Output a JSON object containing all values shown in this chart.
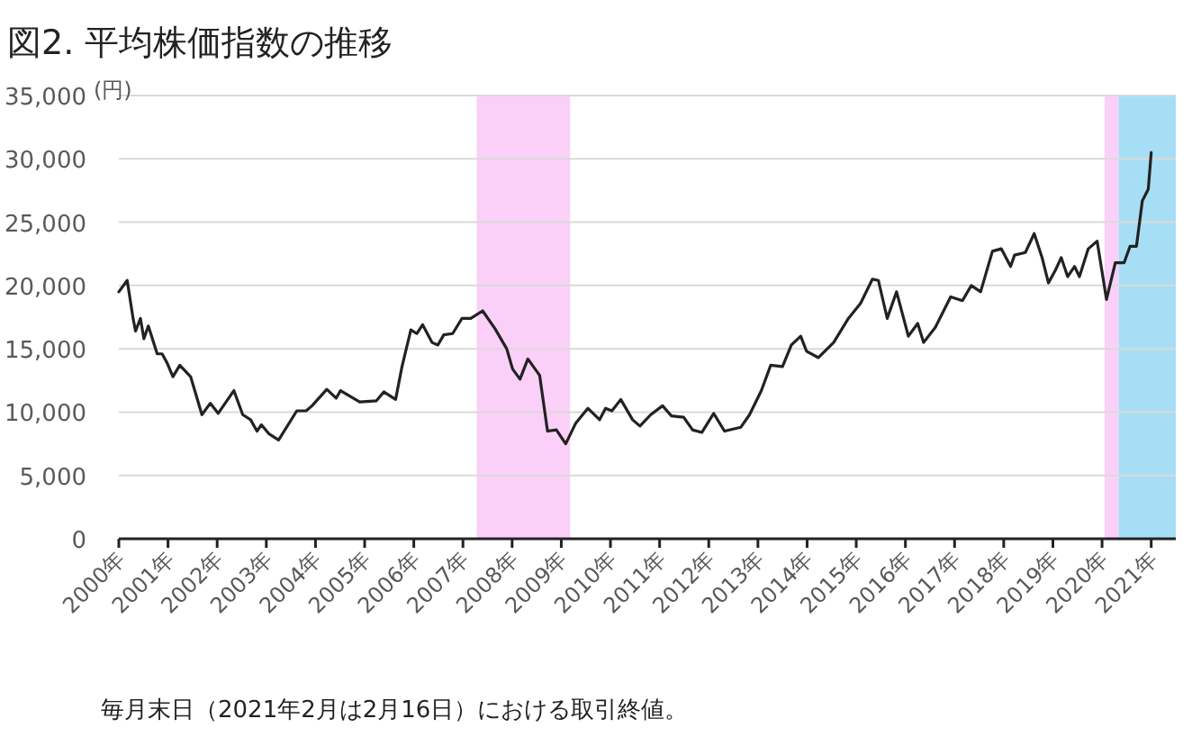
{
  "chart_data": {
    "type": "line",
    "title": "図2. 平均株価指数の推移",
    "ylabel": "(円)",
    "annotations": [
      "毎月末日（2021年2月は2月16日）における取引終値。"
    ],
    "x": [
      2000,
      2000.17,
      2000.29,
      2000.34,
      2000.44,
      2000.51,
      2000.6,
      2000.78,
      2000.88,
      2000.98,
      2001.1,
      2001.24,
      2001.46,
      2001.69,
      2001.86,
      2002.02,
      2002.34,
      2002.52,
      2002.68,
      2002.81,
      2002.9,
      2003.05,
      2003.25,
      2003.62,
      2003.81,
      2003.93,
      2004.23,
      2004.42,
      2004.51,
      2004.9,
      2005.24,
      2005.39,
      2005.63,
      2005.76,
      2005.94,
      2006.06,
      2006.18,
      2006.37,
      2006.49,
      2006.61,
      2006.79,
      2006.98,
      2007.16,
      2007.4,
      2007.65,
      2007.89,
      2008.01,
      2008.16,
      2008.32,
      2008.56,
      2008.72,
      2008.9,
      2009.09,
      2009.29,
      2009.54,
      2009.78,
      2009.9,
      2010.03,
      2010.21,
      2010.45,
      2010.6,
      2010.82,
      2011.06,
      2011.24,
      2011.49,
      2011.67,
      2011.86,
      2012.1,
      2012.32,
      2012.65,
      2012.83,
      2013.07,
      2013.26,
      2013.5,
      2013.68,
      2013.87,
      2013.99,
      2014.23,
      2014.54,
      2014.84,
      2015.09,
      2015.33,
      2015.45,
      2015.63,
      2015.82,
      2016.06,
      2016.25,
      2016.37,
      2016.61,
      2016.92,
      2017.16,
      2017.34,
      2017.53,
      2017.77,
      2017.95,
      2018.14,
      2018.22,
      2018.44,
      2018.62,
      2018.78,
      2018.91,
      2019.05,
      2019.17,
      2019.3,
      2019.44,
      2019.54,
      2019.72,
      2019.9,
      2020.09,
      2020.27,
      2020.45,
      2020.57,
      2020.7,
      2020.82,
      2020.94,
      2021.0
    ],
    "series": [
      {
        "color": "#222222",
        "values": [
          19500,
          20400,
          17400,
          16400,
          17400,
          15800,
          16800,
          14600,
          14600,
          13900,
          12800,
          13700,
          12800,
          9800,
          10700,
          9900,
          11700,
          9800,
          9400,
          8500,
          9000,
          8300,
          7800,
          10100,
          10100,
          10500,
          11800,
          11100,
          11700,
          10800,
          10900,
          11600,
          11000,
          13600,
          16500,
          16200,
          16900,
          15500,
          15300,
          16100,
          16200,
          17400,
          17400,
          18000,
          16600,
          15000,
          13400,
          12600,
          14200,
          12900,
          8500,
          8600,
          7500,
          9100,
          10300,
          9400,
          10300,
          10100,
          11000,
          9400,
          8900,
          9800,
          10500,
          9700,
          9600,
          8600,
          8400,
          9900,
          8500,
          8800,
          9800,
          11700,
          13700,
          13600,
          15300,
          16000,
          14800,
          14300,
          15500,
          17400,
          18600,
          20500,
          20400,
          17400,
          19500,
          16000,
          17000,
          15500,
          16700,
          19100,
          18800,
          20000,
          19500,
          22700,
          22900,
          21500,
          22400,
          22600,
          24100,
          22200,
          20200,
          21200,
          22200,
          20700,
          21500,
          20700,
          22900,
          23500,
          18900,
          21800,
          21800,
          23100,
          23100,
          26700,
          27600,
          30500
        ]
      }
    ],
    "xlim": [
      2000,
      2021.5
    ],
    "xticks": [
      {
        "value": 2000,
        "label": "2000年"
      },
      {
        "value": 2001,
        "label": "2001年"
      },
      {
        "value": 2002,
        "label": "2002年"
      },
      {
        "value": 2003,
        "label": "2003年"
      },
      {
        "value": 2004,
        "label": "2004年"
      },
      {
        "value": 2005,
        "label": "2005年"
      },
      {
        "value": 2006,
        "label": "2006年"
      },
      {
        "value": 2007,
        "label": "2007年"
      },
      {
        "value": 2008,
        "label": "2008年"
      },
      {
        "value": 2009,
        "label": "2009年"
      },
      {
        "value": 2010,
        "label": "2010年"
      },
      {
        "value": 2011,
        "label": "2011年"
      },
      {
        "value": 2012,
        "label": "2012年"
      },
      {
        "value": 2013,
        "label": "2013年"
      },
      {
        "value": 2014,
        "label": "2014年"
      },
      {
        "value": 2015,
        "label": "2015年"
      },
      {
        "value": 2016,
        "label": "2016年"
      },
      {
        "value": 2017,
        "label": "2017年"
      },
      {
        "value": 2018,
        "label": "2018年"
      },
      {
        "value": 2019,
        "label": "2019年"
      },
      {
        "value": 2020,
        "label": "2020年"
      },
      {
        "value": 2021,
        "label": "2021年"
      }
    ],
    "ylim": [
      0,
      35000
    ],
    "yticks": [
      0,
      {
        "value": 5000,
        "label": "5,000"
      },
      {
        "value": 10000,
        "label": "10,000"
      },
      {
        "value": 15000,
        "label": "15,000"
      },
      {
        "value": 20000,
        "label": "20,000"
      },
      {
        "value": 25000,
        "label": "25,000"
      },
      {
        "value": 30000,
        "label": "30,000"
      },
      {
        "value": 35000,
        "label": "35,000"
      }
    ],
    "grid": "y",
    "bands": [
      {
        "axis": "x",
        "from": 2007.28,
        "to": 2009.18,
        "color": "#fbd0f8"
      },
      {
        "axis": "x",
        "from": 2020.05,
        "to": 2020.34,
        "color": "#fbd0f8"
      },
      {
        "axis": "x",
        "from": 2020.34,
        "to": 2021.5,
        "color": "#a6dff5"
      }
    ]
  }
}
